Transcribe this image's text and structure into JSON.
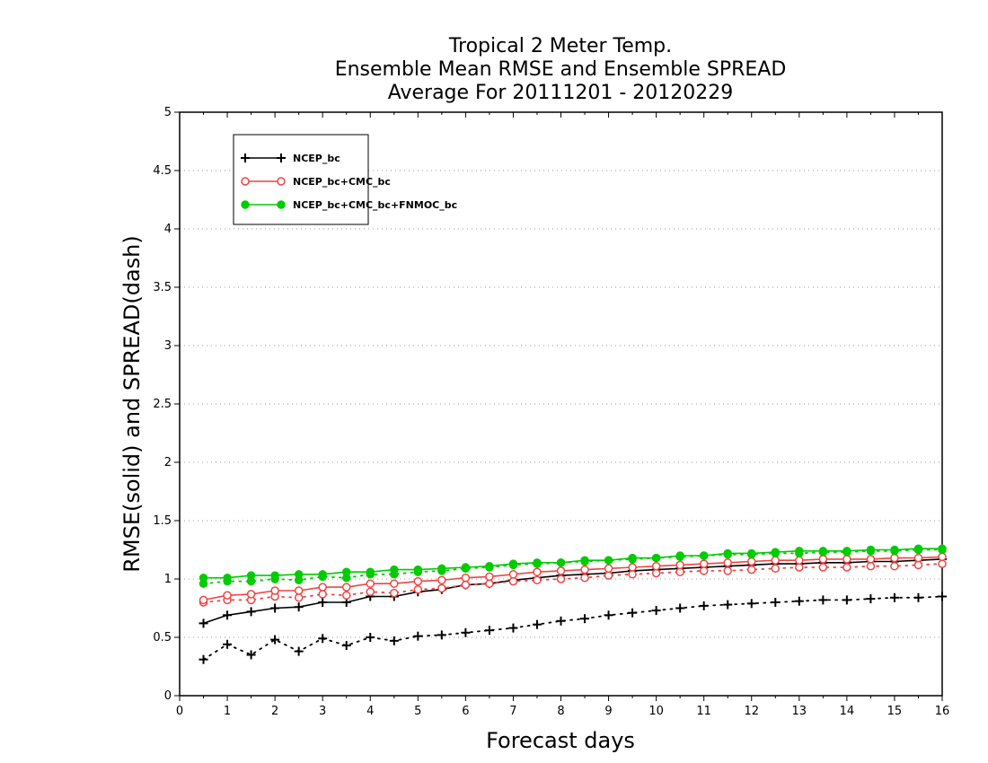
{
  "chart_data": {
    "type": "line",
    "title": [
      "Tropical 2 Meter Temp.",
      "Ensemble Mean RMSE and Ensemble SPREAD",
      "Average For 20111201 - 20120229"
    ],
    "xlabel": "Forecast days",
    "ylabel": "RMSE(solid) and SPREAD(dash)",
    "xlim": [
      0,
      16
    ],
    "ylim": [
      0,
      5
    ],
    "xticks": [
      "0",
      "1",
      "2",
      "3",
      "4",
      "5",
      "6",
      "7",
      "8",
      "9",
      "10",
      "11",
      "12",
      "13",
      "14",
      "15",
      "16"
    ],
    "yticks": [
      "0",
      "0.5",
      "1",
      "1.5",
      "2",
      "2.5",
      "3",
      "3.5",
      "4",
      "4.5",
      "5"
    ],
    "grid": "horizontal dotted",
    "legend_position": "top-left",
    "x": [
      0.5,
      1,
      1.5,
      2,
      2.5,
      3,
      3.5,
      4,
      4.5,
      5,
      5.5,
      6,
      6.5,
      7,
      7.5,
      8,
      8.5,
      9,
      9.5,
      10,
      10.5,
      11,
      11.5,
      12,
      12.5,
      13,
      13.5,
      14,
      14.5,
      15,
      15.5,
      16
    ],
    "series": [
      {
        "name": "NCEP_bc",
        "color": "#000000",
        "marker": "plus",
        "rmse": [
          0.62,
          0.69,
          0.72,
          0.75,
          0.76,
          0.8,
          0.8,
          0.85,
          0.85,
          0.89,
          0.91,
          0.95,
          0.96,
          0.99,
          1.01,
          1.03,
          1.04,
          1.05,
          1.07,
          1.08,
          1.09,
          1.1,
          1.11,
          1.12,
          1.13,
          1.13,
          1.14,
          1.14,
          1.15,
          1.15,
          1.16,
          1.17
        ],
        "spread": [
          0.31,
          0.44,
          0.35,
          0.48,
          0.38,
          0.49,
          0.43,
          0.5,
          0.47,
          0.51,
          0.52,
          0.54,
          0.56,
          0.58,
          0.61,
          0.64,
          0.66,
          0.69,
          0.71,
          0.73,
          0.75,
          0.77,
          0.78,
          0.79,
          0.8,
          0.81,
          0.82,
          0.82,
          0.83,
          0.84,
          0.84,
          0.85
        ]
      },
      {
        "name": "NCEP_bc+CMC_bc",
        "color": "#ee4444",
        "marker": "circle-open",
        "rmse": [
          0.82,
          0.86,
          0.87,
          0.9,
          0.9,
          0.93,
          0.93,
          0.96,
          0.96,
          0.98,
          0.99,
          1.01,
          1.02,
          1.04,
          1.06,
          1.07,
          1.08,
          1.09,
          1.1,
          1.11,
          1.12,
          1.13,
          1.14,
          1.15,
          1.16,
          1.16,
          1.17,
          1.17,
          1.17,
          1.18,
          1.18,
          1.19
        ],
        "spread": [
          0.8,
          0.82,
          0.82,
          0.85,
          0.84,
          0.87,
          0.86,
          0.89,
          0.88,
          0.91,
          0.92,
          0.95,
          0.96,
          0.98,
          0.99,
          1.0,
          1.01,
          1.03,
          1.04,
          1.05,
          1.06,
          1.07,
          1.07,
          1.08,
          1.09,
          1.1,
          1.1,
          1.1,
          1.11,
          1.11,
          1.12,
          1.13
        ]
      },
      {
        "name": "NCEP_bc+CMC_bc+FNMOC_bc",
        "color": "#00cc00",
        "marker": "circle-filled",
        "rmse": [
          1.01,
          1.01,
          1.03,
          1.03,
          1.04,
          1.04,
          1.06,
          1.06,
          1.08,
          1.08,
          1.09,
          1.1,
          1.11,
          1.13,
          1.14,
          1.14,
          1.16,
          1.16,
          1.18,
          1.18,
          1.2,
          1.2,
          1.22,
          1.22,
          1.23,
          1.24,
          1.24,
          1.24,
          1.25,
          1.25,
          1.26,
          1.26
        ],
        "spread": [
          0.96,
          0.98,
          0.98,
          1.0,
          0.99,
          1.02,
          1.01,
          1.04,
          1.04,
          1.06,
          1.07,
          1.09,
          1.1,
          1.12,
          1.13,
          1.14,
          1.15,
          1.16,
          1.17,
          1.18,
          1.19,
          1.2,
          1.21,
          1.21,
          1.22,
          1.22,
          1.23,
          1.23,
          1.24,
          1.24,
          1.25,
          1.25
        ]
      }
    ]
  }
}
